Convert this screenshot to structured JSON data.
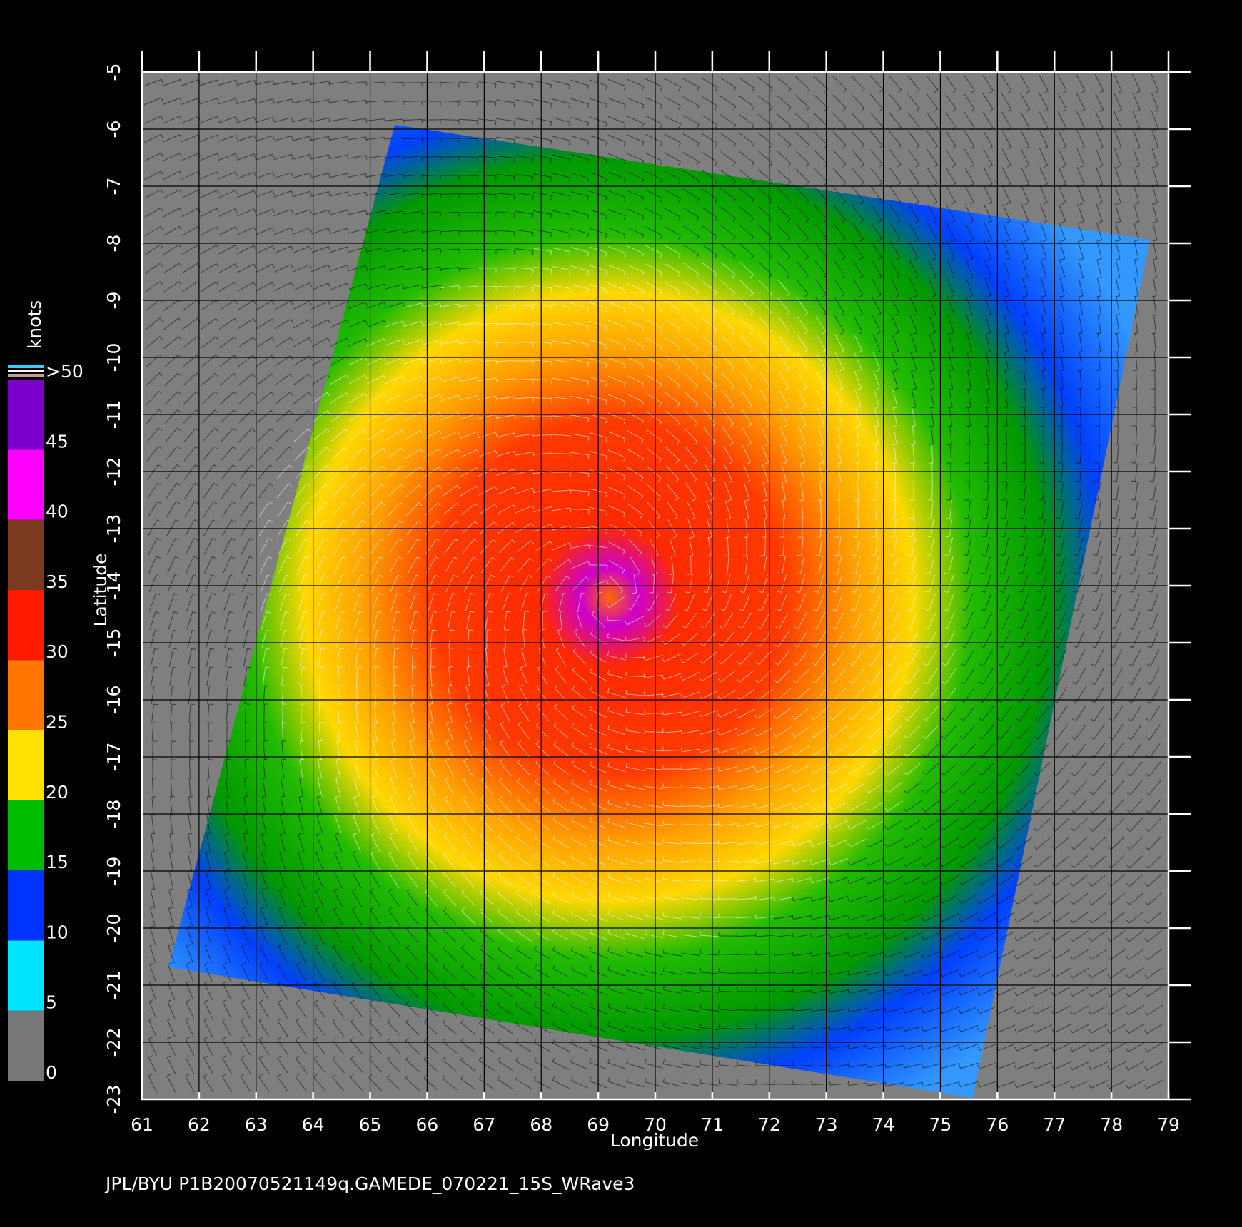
{
  "chart_data": {
    "type": "map",
    "footer": "JPL/BYU  P1B20070521149q.GAMEDE_070221_15S_WRave3",
    "x_label": "Longitude",
    "y_label": "Latitude",
    "xlim": [
      61,
      79
    ],
    "ylim": [
      -23,
      -5
    ],
    "xticks": [
      61,
      62,
      63,
      64,
      65,
      66,
      67,
      68,
      69,
      70,
      71,
      72,
      73,
      74,
      75,
      76,
      77,
      78,
      79
    ],
    "yticks": [
      -5,
      -6,
      -7,
      -8,
      -9,
      -10,
      -11,
      -12,
      -13,
      -14,
      -15,
      -16,
      -17,
      -18,
      -19,
      -20,
      -21,
      -22,
      -23
    ],
    "grid": true,
    "colorbar": {
      "label": "knots",
      "lim": [
        0,
        50
      ],
      "ticks": [
        0,
        5,
        10,
        15,
        20,
        25,
        30,
        35,
        40,
        45,
        {
          "value": 50,
          "label": ">50"
        }
      ],
      "colors": [
        "#777777",
        "#00e5ff",
        "#0033ff",
        "#00bb00",
        "#ffe000",
        "#ff7700",
        "#ff1a00",
        "#7a3a20",
        "#ff00ff",
        "#7a00cc"
      ]
    }
  }
}
